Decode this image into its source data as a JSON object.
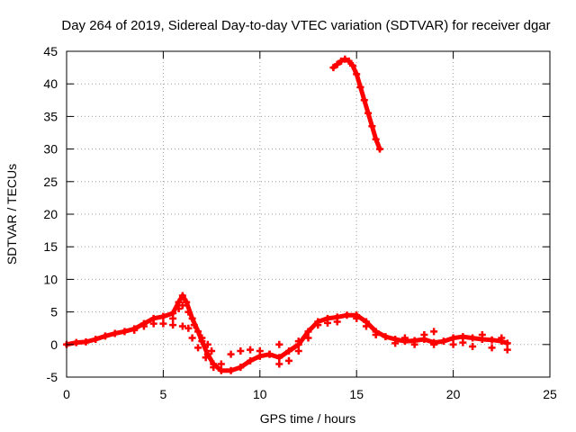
{
  "chart_data": {
    "type": "scatter",
    "title": "Day 264 of 2019, Sidereal Day-to-day VTEC variation (SDTVAR) for receiver dgar",
    "xlabel": "GPS time / hours",
    "ylabel": "SDTVAR / TECUs",
    "xlim": [
      0,
      25
    ],
    "ylim": [
      -5,
      45
    ],
    "xticks": [
      0,
      5,
      10,
      15,
      20,
      25
    ],
    "yticks": [
      -5,
      0,
      5,
      10,
      15,
      20,
      25,
      30,
      35,
      40,
      45
    ],
    "grid": true,
    "marker": "plus",
    "color": "#ff0000",
    "series": [
      {
        "name": "main",
        "points": [
          [
            0.0,
            0.0
          ],
          [
            0.5,
            0.3
          ],
          [
            1.0,
            0.4
          ],
          [
            1.5,
            0.8
          ],
          [
            2.0,
            1.3
          ],
          [
            2.5,
            1.7
          ],
          [
            3.0,
            2.0
          ],
          [
            3.5,
            2.4
          ],
          [
            4.0,
            3.2
          ],
          [
            4.5,
            4.0
          ],
          [
            5.0,
            4.3
          ],
          [
            5.5,
            4.8
          ],
          [
            5.8,
            6.5
          ],
          [
            6.0,
            7.5
          ],
          [
            6.2,
            6.5
          ],
          [
            6.5,
            4.0
          ],
          [
            6.8,
            2.0
          ],
          [
            7.0,
            0.5
          ],
          [
            7.3,
            -1.5
          ],
          [
            7.6,
            -3.0
          ],
          [
            8.0,
            -4.0
          ],
          [
            8.5,
            -4.0
          ],
          [
            9.0,
            -3.5
          ],
          [
            9.5,
            -2.5
          ],
          [
            10.0,
            -1.8
          ],
          [
            10.5,
            -1.5
          ],
          [
            11.0,
            -2.0
          ],
          [
            11.5,
            -1.0
          ],
          [
            12.0,
            0.0
          ],
          [
            12.5,
            2.0
          ],
          [
            13.0,
            3.5
          ],
          [
            13.5,
            4.0
          ],
          [
            14.0,
            4.2
          ],
          [
            14.5,
            4.5
          ],
          [
            15.0,
            4.5
          ],
          [
            15.5,
            3.5
          ],
          [
            16.0,
            2.0
          ],
          [
            16.5,
            1.2
          ],
          [
            17.0,
            0.8
          ],
          [
            17.5,
            0.5
          ],
          [
            18.0,
            0.6
          ],
          [
            18.5,
            0.8
          ],
          [
            19.0,
            0.3
          ],
          [
            19.5,
            0.5
          ],
          [
            20.0,
            1.0
          ],
          [
            20.5,
            1.2
          ],
          [
            21.0,
            1.0
          ],
          [
            21.5,
            0.8
          ],
          [
            22.0,
            0.7
          ],
          [
            22.5,
            0.5
          ],
          [
            22.8,
            0.2
          ]
        ]
      },
      {
        "name": "secondary",
        "points": [
          [
            3.5,
            2.2
          ],
          [
            4.0,
            2.8
          ],
          [
            4.5,
            3.2
          ],
          [
            5.0,
            3.2
          ],
          [
            5.5,
            3.0
          ],
          [
            6.0,
            2.8
          ],
          [
            6.3,
            2.5
          ],
          [
            6.5,
            1.0
          ],
          [
            6.8,
            -0.5
          ],
          [
            7.2,
            -2.0
          ],
          [
            7.6,
            -3.5
          ],
          [
            8.0,
            -3.0
          ],
          [
            8.5,
            -1.5
          ],
          [
            9.0,
            -1.0
          ],
          [
            9.5,
            -0.8
          ],
          [
            10.0,
            -1.0
          ],
          [
            10.5,
            -1.5
          ],
          [
            11.0,
            -3.0
          ],
          [
            11.5,
            -2.5
          ],
          [
            12.0,
            -1.0
          ],
          [
            12.5,
            1.0
          ],
          [
            13.0,
            3.0
          ],
          [
            13.5,
            3.3
          ],
          [
            14.0,
            3.5
          ],
          [
            15.0,
            4.0
          ],
          [
            15.5,
            2.8
          ],
          [
            16.0,
            1.5
          ],
          [
            17.0,
            0.2
          ],
          [
            18.0,
            0.0
          ],
          [
            19.0,
            0.0
          ],
          [
            20.0,
            0.0
          ],
          [
            21.0,
            -0.3
          ],
          [
            22.0,
            -0.5
          ],
          [
            22.8,
            -0.8
          ],
          [
            5.5,
            4.0
          ],
          [
            5.8,
            5.5
          ],
          [
            6.0,
            6.0
          ],
          [
            6.3,
            5.0
          ],
          [
            6.6,
            3.0
          ],
          [
            7.0,
            1.0
          ],
          [
            7.3,
            0.0
          ],
          [
            7.5,
            -1.0
          ],
          [
            12.0,
            0.5
          ],
          [
            11.0,
            0.0
          ],
          [
            17.5,
            1.0
          ],
          [
            18.5,
            1.5
          ],
          [
            19.0,
            2.0
          ],
          [
            20.5,
            0.3
          ],
          [
            21.5,
            1.5
          ],
          [
            22.5,
            1.0
          ]
        ]
      },
      {
        "name": "upper-arc",
        "points": [
          [
            13.8,
            42.5
          ],
          [
            14.0,
            43.0
          ],
          [
            14.2,
            43.5
          ],
          [
            14.4,
            43.8
          ],
          [
            14.6,
            43.5
          ],
          [
            14.8,
            42.8
          ],
          [
            15.0,
            41.5
          ],
          [
            15.2,
            39.5
          ],
          [
            15.4,
            37.5
          ],
          [
            15.6,
            35.5
          ],
          [
            15.8,
            33.5
          ],
          [
            16.0,
            31.5
          ],
          [
            16.2,
            30.0
          ]
        ]
      }
    ]
  }
}
